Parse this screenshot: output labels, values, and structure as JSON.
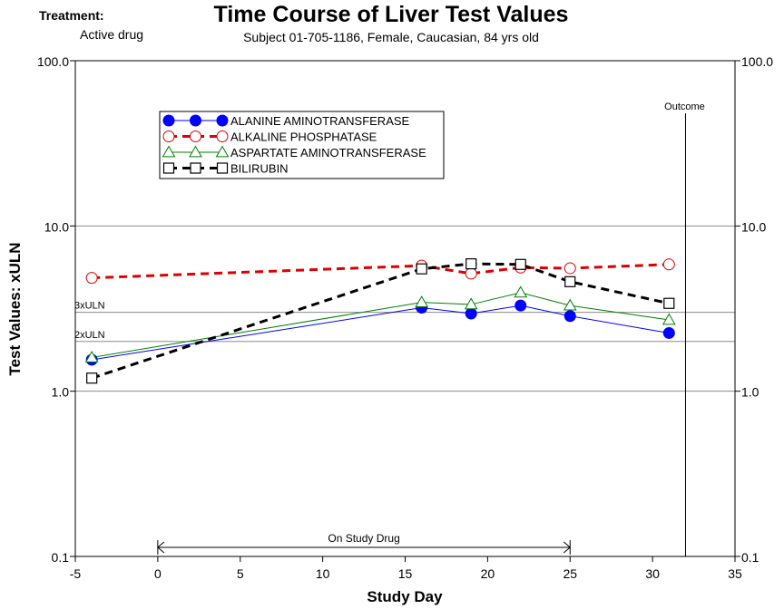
{
  "header": {
    "treatment_label": "Treatment:",
    "treatment_value": "Active drug"
  },
  "chart_data": {
    "type": "line",
    "title": "Time Course of Liver Test Values",
    "subtitle": "Subject 01-705-1186, Female, Caucasian, 84 yrs old",
    "xlabel": "Study Day",
    "ylabel": "Test Values:  xULN",
    "xlim": [
      -5,
      35
    ],
    "ylim": [
      0.1,
      100
    ],
    "yscale": "log",
    "x_ticks": [
      -5,
      0,
      5,
      10,
      15,
      20,
      25,
      30,
      35
    ],
    "x_tick_labels": [
      "-5",
      "0",
      "5",
      "10",
      "15",
      "20",
      "25",
      "30",
      "35"
    ],
    "y_ticks": [
      0.1,
      1,
      10,
      100
    ],
    "y_tick_labels": [
      "0.1",
      "1.0",
      "10.0",
      "100.0"
    ],
    "grid_lines": [
      1,
      10
    ],
    "reference_lines": [
      {
        "label": "3xULN",
        "value": 3
      },
      {
        "label": "2xULN",
        "value": 2
      }
    ],
    "annotations": [
      {
        "label": "Outcome",
        "x": 32
      },
      {
        "label": "On Study Drug",
        "x_start": 0,
        "x_end": 25
      }
    ],
    "legend_position": "top-left",
    "series": [
      {
        "name": "ALANINE AMINOTRANSFERASE",
        "color": "#0000ff",
        "marker": "filled-circle",
        "line": "solid",
        "x": [
          -4,
          16,
          19,
          22,
          25,
          31
        ],
        "y": [
          1.55,
          3.2,
          2.95,
          3.3,
          2.85,
          2.25
        ]
      },
      {
        "name": "ALKALINE PHOSPHATASE",
        "color": "#dd0000",
        "marker": "open-circle",
        "line": "dashed",
        "x": [
          -4,
          16,
          19,
          22,
          25,
          31
        ],
        "y": [
          4.85,
          5.75,
          5.15,
          5.6,
          5.55,
          5.85
        ]
      },
      {
        "name": "ASPARTATE AMINOTRANSFERASE",
        "color": "#008000",
        "marker": "open-triangle",
        "line": "solid",
        "x": [
          -4,
          16,
          19,
          22,
          25,
          31
        ],
        "y": [
          1.6,
          3.45,
          3.35,
          3.95,
          3.3,
          2.7
        ]
      },
      {
        "name": "BILIRUBIN",
        "color": "#000000",
        "marker": "open-square",
        "line": "dashed",
        "x": [
          -4,
          16,
          19,
          22,
          25,
          31
        ],
        "y": [
          1.2,
          5.5,
          5.9,
          5.85,
          4.6,
          3.4
        ]
      }
    ]
  }
}
